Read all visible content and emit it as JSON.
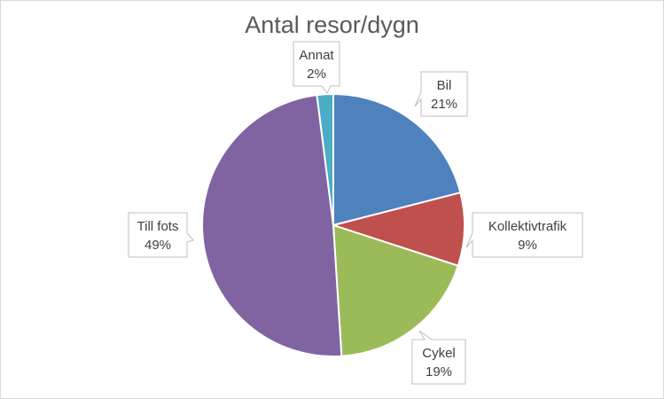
{
  "chart_data": {
    "type": "pie",
    "title": "Antal resor/dygn",
    "start_angle_deg": 0,
    "direction": "clockwise",
    "slices": [
      {
        "label": "Bil",
        "value": 21,
        "display": "21%",
        "color": "#4f81bd"
      },
      {
        "label": "Kollektivtrafik",
        "value": 9,
        "display": "9%",
        "color": "#c0504d"
      },
      {
        "label": "Cykel",
        "value": 19,
        "display": "19%",
        "color": "#9bbb59"
      },
      {
        "label": "Till fots",
        "value": 49,
        "display": "49%",
        "color": "#8064a2"
      },
      {
        "label": "Annat",
        "value": 2,
        "display": "2%",
        "color": "#4bacc6"
      }
    ],
    "legend": "none",
    "data_labels": "callouts"
  }
}
